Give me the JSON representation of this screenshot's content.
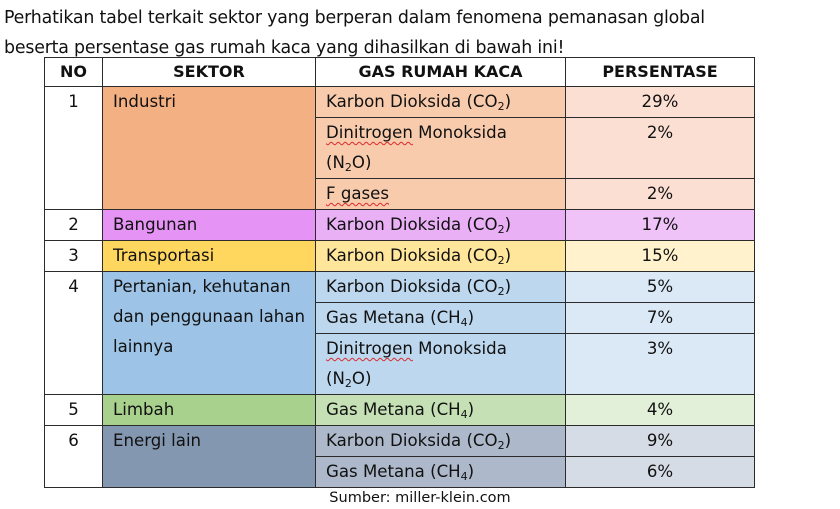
{
  "intro": {
    "line1": "Perhatikan tabel terkait sektor yang berperan dalam fenomena pemanasan global",
    "line2": "beserta persentase gas rumah kaca  yang dihasilkan di bawah ini!"
  },
  "table": {
    "headers": [
      "NO",
      "SEKTOR",
      "GAS RUMAH KACA",
      "PERSENTASE"
    ],
    "groups": [
      {
        "no": "1",
        "sector": "Industri",
        "sector_color": "#f3b082",
        "row_color": "#fbdfd2",
        "gas_color": "#f8cbad",
        "rows": [
          {
            "gas": "Karbon Dioksida (CO",
            "gas_sub": "2",
            "gas_tail": ")",
            "percent": "29%"
          },
          {
            "gas_wavy": "Dinitrogen",
            "gas": " Monoksida (N",
            "gas_sub": "2",
            "gas_tail": "O)",
            "percent": "2%"
          },
          {
            "gas_wavy": "F gases",
            "percent": "2%"
          }
        ]
      },
      {
        "no": "2",
        "sector": "Bangunan",
        "sector_color": "#e594f5",
        "row_color": "#efc2f8",
        "gas_color": "#e9b0f6",
        "rows": [
          {
            "gas": "Karbon Dioksida (CO",
            "gas_sub": "2",
            "gas_tail": ")",
            "percent": "17%"
          }
        ]
      },
      {
        "no": "3",
        "sector": "Transportasi",
        "sector_color": "#ffd75e",
        "row_color": "#fff2cc",
        "gas_color": "#ffe69a",
        "rows": [
          {
            "gas": "Karbon Dioksida (CO",
            "gas_sub": "2",
            "gas_tail": ")",
            "percent": "15%"
          }
        ]
      },
      {
        "no": "4",
        "sector": "Pertanian, kehutanan dan penggunaan lahan lainnya",
        "sector_color": "#9dc3e6",
        "row_color": "#dbe9f6",
        "gas_color": "#bdd7ee",
        "rows": [
          {
            "gas": "Karbon Dioksida (CO",
            "gas_sub": "2",
            "gas_tail": ")",
            "percent": "5%"
          },
          {
            "gas": "Gas Metana (CH",
            "gas_sub": "4",
            "gas_tail": ")",
            "percent": "7%"
          },
          {
            "gas_wavy": "Dinitrogen",
            "gas": " Monoksida (N",
            "gas_sub": "2",
            "gas_tail": "O)",
            "percent": "3%"
          }
        ]
      },
      {
        "no": "5",
        "sector": "Limbah",
        "sector_color": "#a9d18e",
        "row_color": "#e2f0d9",
        "gas_color": "#c5e0b4",
        "rows": [
          {
            "gas": "Gas Metana (CH",
            "gas_sub": "4",
            "gas_tail": ")",
            "percent": "4%"
          }
        ]
      },
      {
        "no": "6",
        "sector": "Energi lain",
        "sector_color": "#8497b0",
        "row_color": "#d6dce5",
        "gas_color": "#adb9ca",
        "rows": [
          {
            "gas": "Karbon Dioksida (CO",
            "gas_sub": "2",
            "gas_tail": ")",
            "percent": "9%"
          },
          {
            "gas": "Gas Metana (CH",
            "gas_sub": "4",
            "gas_tail": ")",
            "percent": "6%"
          }
        ]
      }
    ]
  },
  "source": "Sumber: miller-klein.com"
}
